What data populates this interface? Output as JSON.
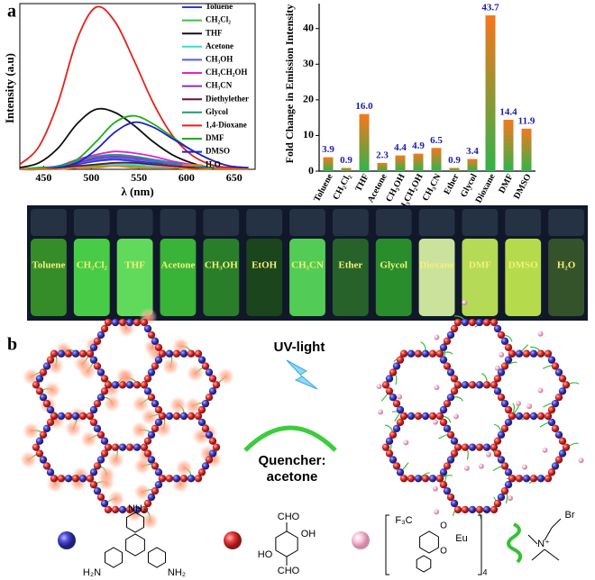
{
  "panel_labels": [
    "a",
    "b"
  ],
  "chart_data": [
    {
      "type": "line",
      "x_label": "λ (nm)",
      "y_label": "Intensity (a.u)",
      "x": [
        425,
        445,
        465,
        485,
        505,
        525,
        545,
        565,
        585,
        605,
        625,
        645,
        665
      ],
      "xlim": [
        425,
        672
      ],
      "xticks": [
        450,
        500,
        550,
        600,
        650
      ],
      "ylim": [
        0,
        1.0
      ],
      "series": [
        {
          "name": "Toluene",
          "color": "#2a3bd6",
          "values": [
            0,
            0,
            0.01,
            0.03,
            0.05,
            0.06,
            0.05,
            0.04,
            0.03,
            0.02,
            0.01,
            0,
            0
          ]
        },
        {
          "name": "CH₂Cl₂",
          "color": "#3ac43a",
          "values": [
            0,
            0,
            0,
            0.01,
            0.02,
            0.02,
            0.02,
            0.01,
            0.01,
            0,
            0,
            0,
            0
          ]
        },
        {
          "name": "THF",
          "color": "#111111",
          "values": [
            0.01,
            0.04,
            0.13,
            0.28,
            0.37,
            0.35,
            0.27,
            0.17,
            0.09,
            0.04,
            0.01,
            0,
            0
          ]
        },
        {
          "name": "Acetone",
          "color": "#2ee0e0",
          "values": [
            0,
            0,
            0.01,
            0.02,
            0.03,
            0.03,
            0.03,
            0.02,
            0.01,
            0.01,
            0,
            0,
            0
          ]
        },
        {
          "name": "CH₃OH",
          "color": "#5a5ae0",
          "values": [
            0,
            0,
            0.01,
            0.04,
            0.06,
            0.07,
            0.06,
            0.05,
            0.03,
            0.02,
            0.01,
            0,
            0
          ]
        },
        {
          "name": "CH₃CH₂OH",
          "color": "#e020e0",
          "values": [
            0,
            0.01,
            0.02,
            0.06,
            0.09,
            0.11,
            0.1,
            0.08,
            0.05,
            0.03,
            0.01,
            0.01,
            0
          ]
        },
        {
          "name": "CH₃CN",
          "color": "#8a2bc8",
          "values": [
            0,
            0,
            0.02,
            0.04,
            0.07,
            0.08,
            0.07,
            0.06,
            0.04,
            0.02,
            0.01,
            0,
            0
          ]
        },
        {
          "name": "Diethylether",
          "color": "#6a1030",
          "values": [
            0,
            0,
            0.01,
            0.02,
            0.03,
            0.04,
            0.04,
            0.03,
            0.02,
            0.01,
            0,
            0,
            0
          ]
        },
        {
          "name": "Glycol",
          "color": "#1a9a7a",
          "values": [
            0,
            0,
            0.02,
            0.05,
            0.08,
            0.09,
            0.08,
            0.06,
            0.04,
            0.02,
            0.01,
            0,
            0
          ]
        },
        {
          "name": "1,4-Dioxane",
          "color": "#e8201a",
          "values": [
            0.03,
            0.14,
            0.41,
            0.8,
            1.0,
            0.91,
            0.67,
            0.41,
            0.21,
            0.09,
            0.03,
            0.01,
            0
          ]
        },
        {
          "name": "DMF",
          "color": "#1ab01a",
          "values": [
            0,
            0.01,
            0.01,
            0.06,
            0.17,
            0.29,
            0.33,
            0.28,
            0.2,
            0.12,
            0.06,
            0.02,
            0.01
          ]
        },
        {
          "name": "DMSO",
          "color": "#2020c8",
          "values": [
            0,
            0,
            0.01,
            0.04,
            0.12,
            0.23,
            0.29,
            0.26,
            0.19,
            0.12,
            0.06,
            0.02,
            0.01
          ]
        },
        {
          "name": "H₂O",
          "color": "#f08020",
          "values": [
            0,
            0,
            0,
            0.01,
            0.01,
            0.02,
            0.01,
            0.01,
            0.01,
            0,
            0,
            0,
            0
          ]
        }
      ]
    },
    {
      "type": "bar",
      "y_label": "Fold Change in Emission Intensity",
      "categories": [
        "Toluene",
        "CH₂Cl₂",
        "THF",
        "Acetone",
        "CH₃OH",
        "CH₃CH₂OH",
        "CH₃CN",
        "Ether",
        "Glycol",
        "Dioxane",
        "DMF",
        "DMSO"
      ],
      "values": [
        3.9,
        0.9,
        16.0,
        2.3,
        4.4,
        4.9,
        6.5,
        0.9,
        3.4,
        43.7,
        14.4,
        11.9
      ],
      "value_labels": [
        "3.9",
        "0.9",
        "16.0",
        "2.3",
        "4.4",
        "4.9",
        "6.5",
        "0.9",
        "3.4",
        "43.7",
        "14.4",
        "11.9"
      ],
      "gradient": [
        "#f7761c",
        "#2fb44a"
      ],
      "ylim": [
        0,
        47
      ],
      "yticks": [
        0,
        10,
        20,
        30,
        40
      ]
    }
  ],
  "photo": {
    "labels": [
      "Toluene",
      "CH₂Cl₂",
      "THF",
      "Acetone",
      "CH₃OH",
      "EtOH",
      "CH₃CN",
      "Ether",
      "Glycol",
      "Dioxane",
      "DMF",
      "DMSO",
      "H₂O"
    ]
  },
  "diagram": {
    "uv_label": "UV-light",
    "quencher_label": [
      "Quencher:",
      "acetone"
    ]
  },
  "structures": {
    "amine": [
      "NH₂",
      "H₂N",
      "NH₂"
    ],
    "aldehyde": [
      "CHO",
      "OH",
      "HO",
      "CHO"
    ],
    "europium": [
      "F₃C",
      "O",
      "O",
      "Eu",
      "4",
      "-"
    ],
    "ammonium": [
      "Br",
      "N⁺"
    ]
  }
}
